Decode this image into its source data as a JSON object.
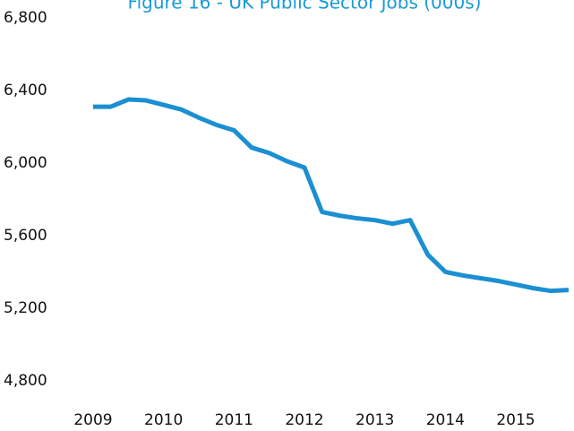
{
  "chart_data": {
    "type": "line",
    "title": "Figure 16 - UK Public Sector Jobs (000s)",
    "categories": [
      "2009",
      null,
      null,
      null,
      "2010",
      null,
      null,
      null,
      "2011",
      null,
      null,
      null,
      "2012",
      null,
      null,
      null,
      "2013",
      null,
      null,
      null,
      "2014",
      null,
      null,
      null,
      "2015",
      null,
      null,
      null
    ],
    "series": [
      {
        "name": "UK Public Sector Jobs",
        "color": "#1b8fd2",
        "values": [
          6350,
          6350,
          6390,
          6385,
          6360,
          6335,
          6290,
          6250,
          6220,
          6125,
          6095,
          6050,
          6015,
          5770,
          5750,
          5735,
          5725,
          5705,
          5725,
          5535,
          5440,
          5420,
          5405,
          5390,
          5370,
          5350,
          5335,
          5340
        ]
      }
    ],
    "ylim": [
      4800,
      6800
    ],
    "yticks": [
      {
        "value": 4800,
        "label": "4,800"
      },
      {
        "value": 5200,
        "label": "5,200"
      },
      {
        "value": 5600,
        "label": "5,600"
      },
      {
        "value": 6000,
        "label": "6,000"
      },
      {
        "value": 6400,
        "label": "6,400"
      },
      {
        "value": 6800,
        "label": "6,800"
      }
    ],
    "grid": false
  }
}
